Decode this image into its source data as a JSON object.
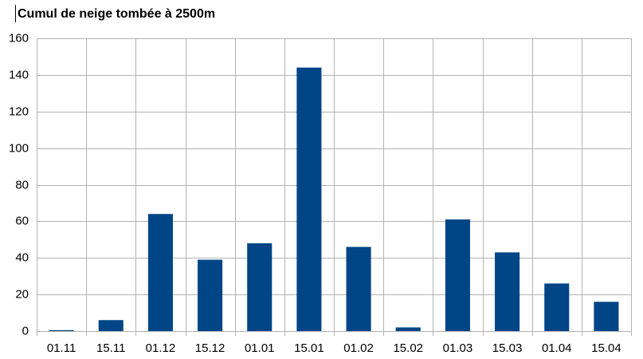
{
  "chart_data": {
    "type": "bar",
    "title": "Cumul de neige tombée à 2500m",
    "categories": [
      "01.11",
      "15.11",
      "01.12",
      "15.12",
      "01.01",
      "15.01",
      "01.02",
      "15.02",
      "01.03",
      "15.03",
      "01.04",
      "15.04"
    ],
    "values": [
      0.5,
      6,
      64,
      39,
      48,
      144,
      46,
      2,
      61,
      43,
      26,
      16
    ],
    "color": "#004586",
    "ylim": [
      0,
      160
    ],
    "yticks": [
      0,
      20,
      40,
      60,
      80,
      100,
      120,
      140,
      160
    ],
    "grid": true
  }
}
